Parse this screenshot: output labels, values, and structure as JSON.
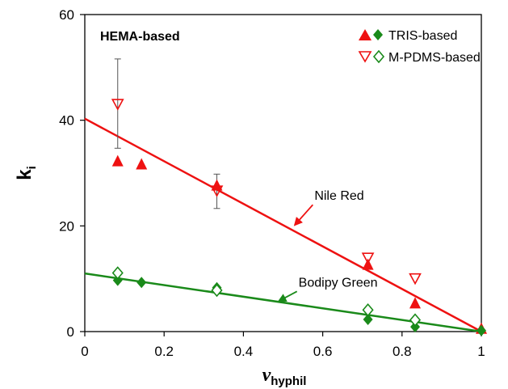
{
  "chart_data": {
    "type": "scatter",
    "title": "HEMA-based",
    "xlabel": {
      "main": "v",
      "sub": "hyphil"
    },
    "ylabel": {
      "main": "k",
      "sub": "i"
    },
    "xlim": [
      0,
      1
    ],
    "ylim": [
      0,
      60
    ],
    "xticks": [
      0,
      0.2,
      0.4,
      0.6,
      0.8,
      1
    ],
    "xtick_labels": [
      "0",
      "0.2",
      "0.4",
      "0.6",
      "0.8",
      "1"
    ],
    "yticks": [
      0,
      20,
      40,
      60
    ],
    "ytick_labels": [
      "0",
      "20",
      "40",
      "60"
    ],
    "grid": false,
    "legend": {
      "placement": "top-right",
      "entries": [
        {
          "label": "TRIS-based",
          "markers": [
            "filled-triangle-up-red",
            "filled-diamond-green"
          ]
        },
        {
          "label": "M-PDMS-based",
          "markers": [
            "open-triangle-down-red",
            "open-diamond-green"
          ]
        }
      ]
    },
    "series": [
      {
        "name": "TRIS-based",
        "dye": "Nile Red",
        "marker": "filled-triangle-up",
        "color": "#ee1111",
        "points": [
          [
            0.083,
            32.2
          ],
          [
            0.143,
            31.6
          ],
          [
            0.333,
            27.6
          ],
          [
            0.714,
            12.6
          ],
          [
            0.833,
            5.3
          ],
          [
            1.0,
            0.5
          ]
        ]
      },
      {
        "name": "M-PDMS-based",
        "dye": "Nile Red",
        "marker": "open-triangle-down",
        "color": "#ee1111",
        "points": [
          [
            0.083,
            43.0
          ],
          [
            0.333,
            26.6
          ],
          [
            0.714,
            13.9
          ],
          [
            0.833,
            10.0
          ]
        ],
        "error_bars": [
          {
            "x": 0.083,
            "low": 34.7,
            "high": 51.6
          },
          {
            "x": 0.333,
            "low": 23.3,
            "high": 29.8
          }
        ]
      },
      {
        "name": "TRIS-based",
        "dye": "Bodipy Green",
        "marker": "filled-diamond",
        "color": "#1a8a1a",
        "points": [
          [
            0.083,
            9.7
          ],
          [
            0.143,
            9.3
          ],
          [
            0.333,
            8.3
          ],
          [
            0.714,
            2.3
          ],
          [
            0.833,
            0.9
          ],
          [
            1.0,
            0.2
          ]
        ]
      },
      {
        "name": "M-PDMS-based",
        "dye": "Bodipy Green",
        "marker": "open-diamond",
        "color": "#1a8a1a",
        "points": [
          [
            0.083,
            11.1
          ],
          [
            0.333,
            7.8
          ],
          [
            0.714,
            4.1
          ],
          [
            0.833,
            2.2
          ]
        ]
      }
    ],
    "fit_lines": [
      {
        "name": "Nile Red fit",
        "color": "#ee1111",
        "from": [
          0,
          40.3
        ],
        "to": [
          1,
          0
        ]
      },
      {
        "name": "Bodipy Green fit",
        "color": "#1a8a1a",
        "from": [
          0,
          11.0
        ],
        "to": [
          1,
          0
        ]
      }
    ],
    "annotations": [
      {
        "text": "Nile Red",
        "color": "#ee1111",
        "arrow_to": [
          0.53,
          20.2
        ],
        "arrow_from": [
          0.575,
          24.0
        ]
      },
      {
        "text": "Bodipy Green",
        "color": "#1a8a1a",
        "arrow_to": [
          0.49,
          5.8
        ],
        "arrow_from": [
          0.535,
          7.6
        ]
      }
    ]
  }
}
